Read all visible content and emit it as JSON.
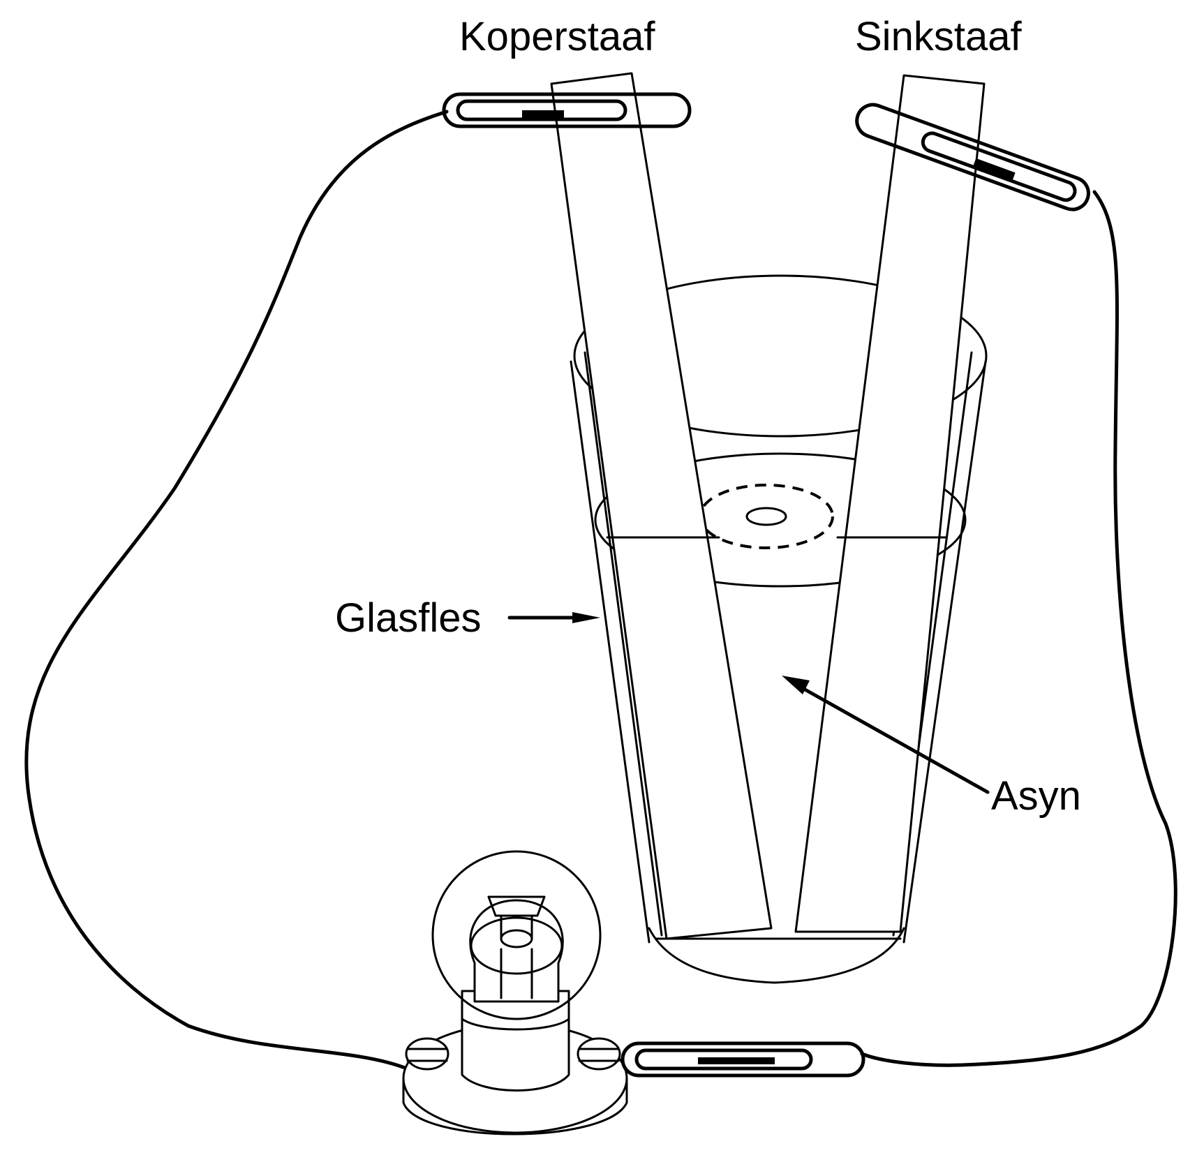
{
  "labels": {
    "copper_rod": "Koperstaaf",
    "zinc_rod": "Sinkstaaf",
    "glass_jar": "Glasfles",
    "vinegar": "Asyn"
  }
}
